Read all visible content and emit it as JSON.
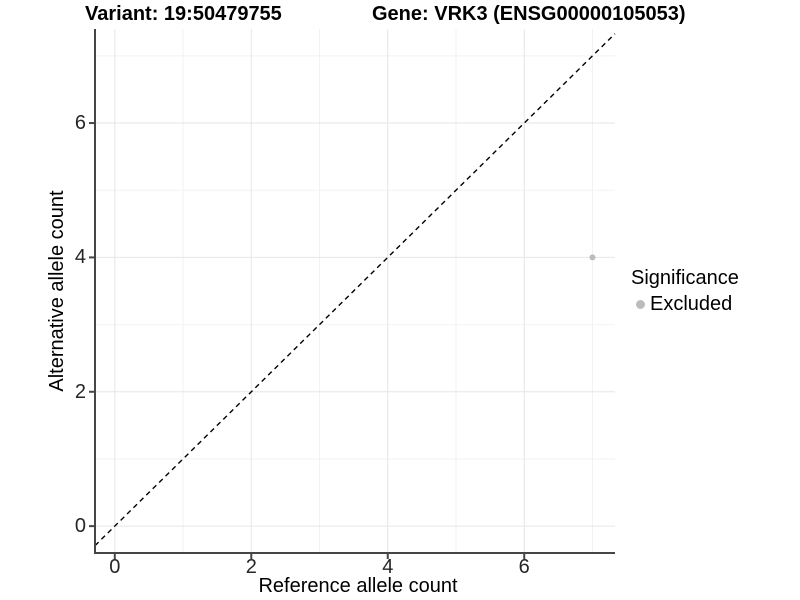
{
  "colors": {
    "background": "#ffffff",
    "axis_line": "#464646",
    "grid_major": "#e6e6e6",
    "grid_minor": "#f2f2f2",
    "tick_label": "#262626",
    "reference_line": "#000000",
    "point": "#bcbcbc"
  },
  "chart_data": {
    "type": "scatter",
    "variant_title": "Variant: 19:50479755",
    "gene_title": "Gene: VRK3 (ENSG00000105053)",
    "xlabel": "Reference allele count",
    "ylabel": "Alternative allele count",
    "xlim": [
      -0.29,
      7.33
    ],
    "ylim": [
      -0.4,
      7.4
    ],
    "x_ticks": [
      0,
      2,
      4,
      6
    ],
    "y_ticks": [
      0,
      2,
      4,
      6
    ],
    "x_minor_ticks": [
      1,
      3,
      5,
      7
    ],
    "y_minor_ticks": [
      1,
      3,
      5,
      7
    ],
    "grid": true,
    "reference_line": {
      "type": "identity",
      "slope": 1,
      "intercept": 0,
      "style": "dashed",
      "color": "#000000"
    },
    "series": [
      {
        "name": "Excluded",
        "color": "#bcbcbc",
        "point_radius": 3,
        "points": [
          {
            "x": 7,
            "y": 4
          }
        ]
      }
    ],
    "legend": {
      "title": "Significance",
      "position": "right",
      "items": [
        {
          "label": "Excluded",
          "color": "#bcbcbc"
        }
      ]
    }
  }
}
